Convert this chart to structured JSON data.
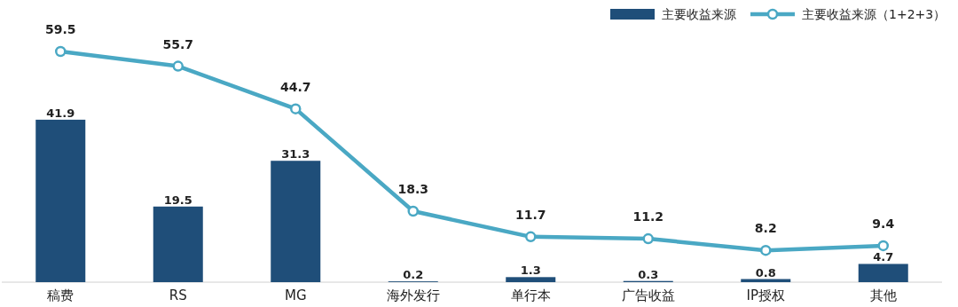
{
  "chart_data": {
    "type": "bar",
    "categories": [
      "稿费",
      "RS",
      "MG",
      "海外发行",
      "单行本",
      "广告收益",
      "IP授权",
      "其他"
    ],
    "series": [
      {
        "name": "主要收益来源",
        "color": "#1f4e79",
        "values": [
          41.9,
          19.5,
          31.3,
          0.2,
          1.3,
          0.3,
          0.8,
          4.7
        ]
      },
      {
        "name": "主要收益来源（1+2+3）",
        "type": "line",
        "color": "#4aa8c4",
        "values": [
          59.5,
          55.7,
          44.7,
          18.3,
          11.7,
          11.2,
          8.2,
          9.4
        ]
      }
    ],
    "data_labels": true,
    "legend": "top right",
    "marker": "circle"
  }
}
